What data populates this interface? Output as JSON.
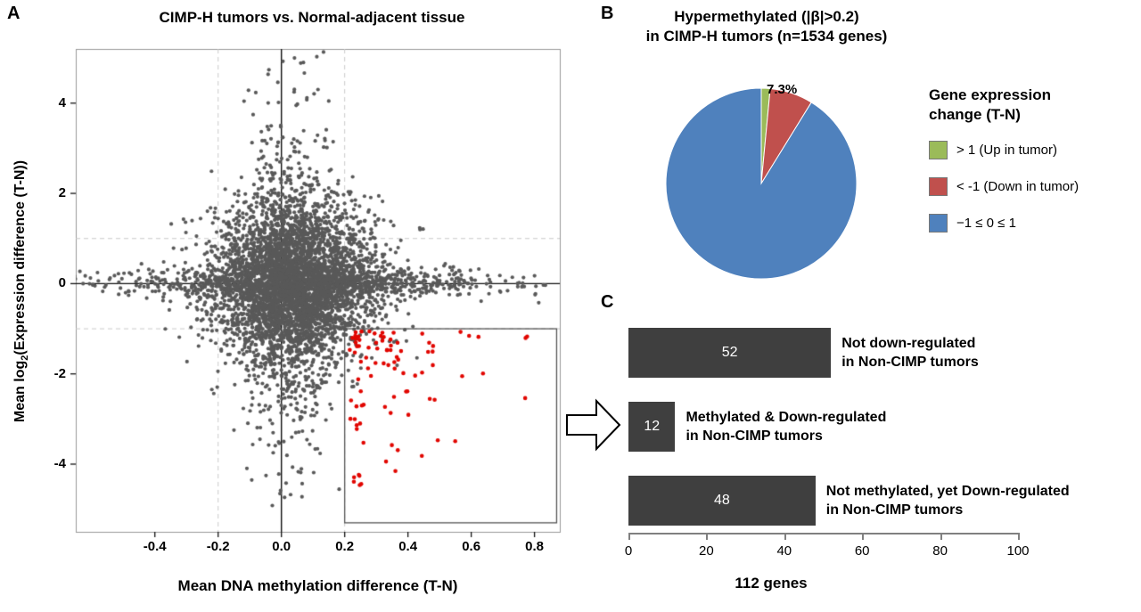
{
  "figure": {
    "panel_a": {
      "label": "A",
      "ylabel_prefix": "Mean log",
      "ylabel_sub": "2",
      "ylabel_suffix": "(Expression difference (T-N))"
    },
    "panel_b": {
      "label": "B",
      "title_line1": "Hypermethylated (|β|>0.2)",
      "title_line2": "in CIMP-H tumors (n=1534 genes)",
      "legend_title_line1": "Gene expression",
      "legend_title_line2": "change (T-N)"
    },
    "panel_c": {
      "label": "C"
    }
  },
  "chart_data": [
    {
      "id": "scatter-a",
      "type": "scatter",
      "title": "CIMP-H tumors vs. Normal-adjacent tissue",
      "xlabel": "Mean DNA methylation difference (T-N)",
      "ylabel": "Mean log2(Expression difference (T-N))",
      "xlim": [
        -0.65,
        0.88
      ],
      "ylim": [
        -5.5,
        5.2
      ],
      "xticks": [
        -0.4,
        -0.2,
        0,
        0.2,
        0.4,
        0.6,
        0.8
      ],
      "xtick_labels": [
        "-0.4",
        "-0.2",
        "0.0",
        "0.2",
        "0.4",
        "0.6",
        "0.8"
      ],
      "yticks": [
        4,
        2,
        0,
        -2,
        -4
      ],
      "ytick_labels": [
        "4",
        "2",
        "0",
        "-2",
        "-4"
      ],
      "solid_ref_lines": {
        "x": 0,
        "y": 0
      },
      "dashed_ref_lines": {
        "x": [
          -0.2,
          0.2
        ],
        "y": [
          1,
          -1
        ]
      },
      "highlight_region": {
        "x_min": 0.2,
        "x_max": 0.87,
        "y_min": -5.3,
        "y_max": -1,
        "meaning": "hypermethylated (>0.2) and down-regulated (<-1) genes shown in red"
      },
      "point_color": "#595959",
      "highlight_point_color": "#e10600",
      "points_are_generated": true,
      "seed": 1234,
      "gray_clusters": [
        {
          "n": 3800,
          "x_mean": 0.04,
          "x_sd": 0.13,
          "y_mean": 0,
          "y_sd": 0.85
        },
        {
          "n": 1000,
          "x_mean": 0.08,
          "x_sd": 0.3,
          "y_mean": 0,
          "y_sd": 0.18
        },
        {
          "n": 800,
          "x_mean": 0.02,
          "x_sd": 0.07,
          "y_mean": 0,
          "y_sd": 2.0
        }
      ],
      "red_cluster": {
        "n": 90,
        "x_start": 0.215,
        "x_scale": 0.13,
        "x_max": 0.8,
        "y_start": -1.05,
        "y_scale": 0.85,
        "y_min": -4.6
      }
    },
    {
      "id": "pie-b",
      "type": "pie",
      "title": "Hypermethylated (|β|>0.2) in CIMP-H tumors (n=1534 genes)",
      "legend_title": "Gene expression change (T-N)",
      "slices": [
        {
          "label": "> 1 (Up in tumor)",
          "value": 1.5,
          "color": "#9bbb59"
        },
        {
          "label": "< -1 (Down in tumor)",
          "value": 7.3,
          "color": "#c0504d",
          "data_label": "7.3%"
        },
        {
          "label": "−1 ≤ 0 ≤ 1",
          "value": 91.2,
          "color": "#4f81bd"
        }
      ],
      "start_angle_deg": 0,
      "direction": "clockwise",
      "legend_position": "right"
    },
    {
      "id": "bar-c",
      "type": "bar",
      "orientation": "horizontal",
      "values": [
        52,
        12,
        48
      ],
      "categories": [
        "Not down-regulated in Non-CIMP tumors",
        "Methylated & Down-regulated in Non-CIMP tumors",
        "Not methylated, yet Down-regulated in Non-CIMP tumors"
      ],
      "category_lines": [
        [
          "Not down-regulated",
          "in Non-CIMP tumors"
        ],
        [
          "Methylated & Down-regulated",
          "in Non-CIMP tumors"
        ],
        [
          "Not methylated, yet Down-regulated",
          "in Non-CIMP tumors"
        ]
      ],
      "xlim": [
        0,
        100
      ],
      "xticks": [
        0,
        20,
        40,
        60,
        80,
        100
      ],
      "xtick_labels": [
        "0",
        "20",
        "40",
        "60",
        "80",
        "100"
      ],
      "xlabel": "112 genes",
      "bar_color": "#3f3f3f",
      "value_label_color": "#ffffff",
      "grid": false
    }
  ]
}
